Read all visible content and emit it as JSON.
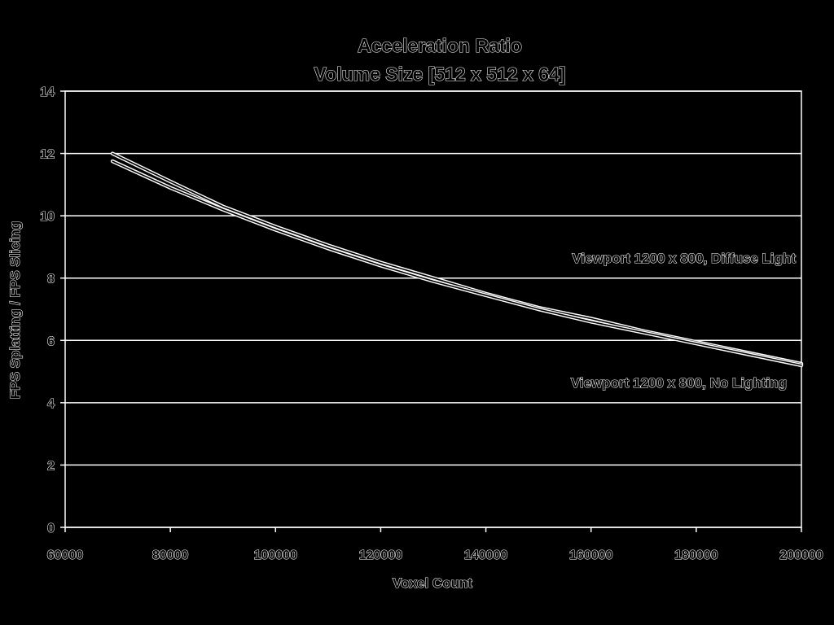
{
  "chart_data": {
    "type": "line",
    "title": "Acceleration Ratio",
    "subtitle": "Volume Size [512 x 512 x 64]",
    "xlabel": "Voxel Count",
    "ylabel": "FPS Splatting / FPS Slicing",
    "xlim": [
      60000,
      200000
    ],
    "ylim": [
      0,
      14
    ],
    "x_ticks": [
      60000,
      80000,
      100000,
      120000,
      140000,
      160000,
      180000,
      200000
    ],
    "y_ticks": [
      0,
      2,
      4,
      6,
      8,
      10,
      12,
      14
    ],
    "x_tick_labels": [
      "60000",
      "80000",
      "100000",
      "120000",
      "140000",
      "160000",
      "180000",
      "200000"
    ],
    "y_tick_labels": [
      "0",
      "2",
      "4",
      "6",
      "8",
      "10",
      "12",
      "14"
    ],
    "grid": "horizontal",
    "legend": "none",
    "series": [
      {
        "name": "Viewport 1200 x 800, Diffuse Light",
        "x": [
          69000,
          80000,
          90000,
          100000,
          110000,
          120000,
          130000,
          140000,
          150000,
          160000,
          170000,
          180000,
          190000,
          200000
        ],
        "y": [
          12.0,
          11.1,
          10.3,
          9.65,
          9.05,
          8.5,
          8.0,
          7.5,
          7.05,
          6.7,
          6.3,
          5.95,
          5.6,
          5.25
        ]
      },
      {
        "name": "Viewport 1200 x 800, No Lighting",
        "x": [
          69000,
          80000,
          90000,
          100000,
          110000,
          120000,
          130000,
          140000,
          150000,
          160000,
          170000,
          180000,
          190000,
          200000
        ],
        "y": [
          11.75,
          10.9,
          10.2,
          9.55,
          8.95,
          8.4,
          7.9,
          7.45,
          7.0,
          6.6,
          6.25,
          5.9,
          5.55,
          5.2
        ]
      }
    ]
  },
  "colors": {
    "background": "#000000",
    "foreground": "#ffffff"
  }
}
